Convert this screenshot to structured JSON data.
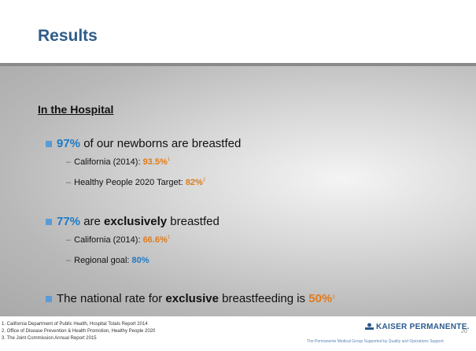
{
  "title": "Results",
  "section": "In the Hospital",
  "sub_marker": "–",
  "bullets": [
    {
      "runs": [
        {
          "text": "97%",
          "style": "blue"
        },
        {
          "text": " of our newborns are breastfed",
          "style": "plain"
        }
      ],
      "subs": [
        {
          "runs": [
            {
              "text": "California (2014): ",
              "style": "plain"
            },
            {
              "text": "93.5%",
              "style": "orange"
            },
            {
              "text": "1",
              "style": "sup"
            }
          ]
        },
        {
          "runs": [
            {
              "text": "Healthy People 2020 Target: ",
              "style": "plain"
            },
            {
              "text": "82%",
              "style": "orange"
            },
            {
              "text": "2",
              "style": "sup"
            }
          ]
        }
      ]
    },
    {
      "runs": [
        {
          "text": "77%",
          "style": "blue"
        },
        {
          "text": " are ",
          "style": "plain"
        },
        {
          "text": "exclusively",
          "style": "bold"
        },
        {
          "text": " breastfed",
          "style": "plain"
        }
      ],
      "subs": [
        {
          "runs": [
            {
              "text": "California (2014): ",
              "style": "plain"
            },
            {
              "text": "66.6%",
              "style": "orange"
            },
            {
              "text": "1",
              "style": "sup"
            }
          ]
        },
        {
          "runs": [
            {
              "text": "Regional goal: ",
              "style": "plain"
            },
            {
              "text": "80%",
              "style": "blue"
            }
          ]
        }
      ]
    },
    {
      "runs": [
        {
          "text": "The national rate for ",
          "style": "plain"
        },
        {
          "text": "exclusive",
          "style": "bold"
        },
        {
          "text": " breastfeeding is ",
          "style": "plain"
        },
        {
          "text": "50%",
          "style": "orange"
        },
        {
          "text": "3",
          "style": "sup"
        }
      ],
      "subs": []
    }
  ],
  "footnotes": [
    "1. California Department of Public Health, Hospital Totals Report 2014",
    "2. Office of Disease Prevention & Health Promotion, Healthy People 2020",
    "3. The Joint Commission Annual Report 2015"
  ],
  "logo": "KAISER PERMANENTE.",
  "tagline": "The Permanente Medical Group Supported by Quality and Operations Support",
  "page_number": "20"
}
